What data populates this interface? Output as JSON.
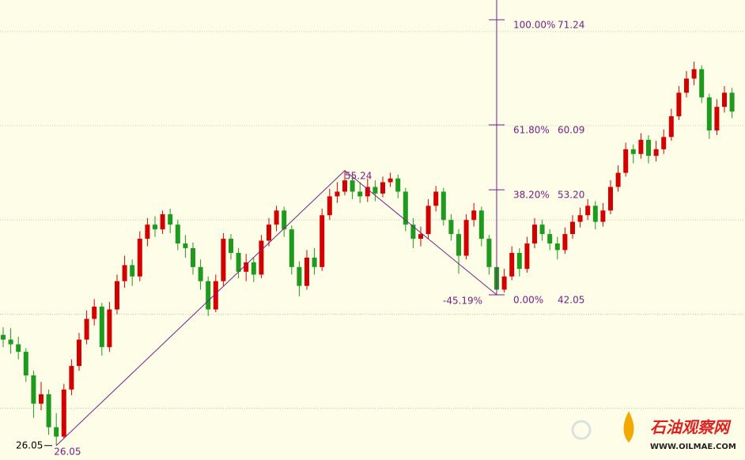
{
  "chart_data": {
    "type": "candlestick",
    "open": [
      37.8,
      37.3,
      36.8,
      36.0,
      33.5,
      30.5,
      31.5,
      28.0,
      27.0,
      32.0,
      34.5,
      37.3,
      39.5,
      40.8,
      36.5,
      40.5,
      43.5,
      45.2,
      44.0,
      48.0,
      49.5,
      49.0,
      50.6,
      49.5,
      47.5,
      47.0,
      45.0,
      43.5,
      40.5,
      43.5,
      48.0,
      46.5,
      44.5,
      45.5,
      44.2,
      47.8,
      49.5,
      51.0,
      49.0,
      45.0,
      43.0,
      46.0,
      45.0,
      50.5,
      52.5,
      53.0,
      54.2,
      53.0,
      52.5,
      53.5,
      52.8,
      54.0,
      54.4,
      53.0,
      49.5,
      48.0,
      48.5,
      51.5,
      53.0,
      50.0,
      48.5,
      46.2,
      50.0,
      51.0,
      48.0,
      45.0,
      42.6,
      44.0,
      46.5,
      44.8,
      47.5,
      49.5,
      48.5,
      47.5,
      46.8,
      48.5,
      49.8,
      50.5,
      51.5,
      49.8,
      51.0,
      53.5,
      55.0,
      57.5,
      57.0,
      58.5,
      56.8,
      57.5,
      58.8,
      61.0,
      63.5,
      65.0,
      66.0,
      63.0,
      59.5,
      62.0,
      63.5
    ],
    "high": [
      38.6,
      38.5,
      37.6,
      36.4,
      34.0,
      32.8,
      32.0,
      29.5,
      32.6,
      35.2,
      38.0,
      40.4,
      41.6,
      41.2,
      41.3,
      44.2,
      46.2,
      45.8,
      48.8,
      50.2,
      50.4,
      51.0,
      51.2,
      50.0,
      48.4,
      47.6,
      45.8,
      44.0,
      44.2,
      48.6,
      48.5,
      47.0,
      46.4,
      46.0,
      48.4,
      50.2,
      51.5,
      51.4,
      49.4,
      45.6,
      46.8,
      47.0,
      51.2,
      53.3,
      54.0,
      55.24,
      54.8,
      54.0,
      54.4,
      54.2,
      54.6,
      55.0,
      54.8,
      53.4,
      50.2,
      49.3,
      52.2,
      53.6,
      53.4,
      50.6,
      49.0,
      50.6,
      51.8,
      51.4,
      48.4,
      45.4,
      44.8,
      47.2,
      47.0,
      48.2,
      50.2,
      50.0,
      49.0,
      48.2,
      49.2,
      50.5,
      51.3,
      52.2,
      52.0,
      51.8,
      54.2,
      55.8,
      58.2,
      58.0,
      59.2,
      59.0,
      58.4,
      59.6,
      61.8,
      64.2,
      65.8,
      66.8,
      66.4,
      63.4,
      62.8,
      64.2,
      64.0
    ],
    "low": [
      36.5,
      35.8,
      35.2,
      32.8,
      29.0,
      29.8,
      27.2,
      26.05,
      26.8,
      31.4,
      34.0,
      36.8,
      38.8,
      35.6,
      36.0,
      40.0,
      42.8,
      43.0,
      43.5,
      47.2,
      48.2,
      48.5,
      48.6,
      46.8,
      46.0,
      44.2,
      42.6,
      39.8,
      40.2,
      43.0,
      45.8,
      43.8,
      43.5,
      43.4,
      43.8,
      47.2,
      48.8,
      48.2,
      44.2,
      41.9,
      42.6,
      44.2,
      44.6,
      50.0,
      51.8,
      52.6,
      52.2,
      51.8,
      51.9,
      52.0,
      52.4,
      53.5,
      52.3,
      48.8,
      47.0,
      47.2,
      48.0,
      50.9,
      49.4,
      47.8,
      44.3,
      45.8,
      49.3,
      47.2,
      44.2,
      42.05,
      42.3,
      43.6,
      44.0,
      44.4,
      47.0,
      47.8,
      46.8,
      45.8,
      46.4,
      48.0,
      49.2,
      50.0,
      49.0,
      49.3,
      50.6,
      53.0,
      54.6,
      56.0,
      56.5,
      56.0,
      56.2,
      57.0,
      58.4,
      60.6,
      63.0,
      64.3,
      62.4,
      58.6,
      59.0,
      61.4,
      60.8
    ],
    "close": [
      37.3,
      36.8,
      36.0,
      33.5,
      30.5,
      31.5,
      28.0,
      27.0,
      32.0,
      34.5,
      37.3,
      39.5,
      40.8,
      36.5,
      40.5,
      43.5,
      45.2,
      44.0,
      48.0,
      49.5,
      49.0,
      50.6,
      49.5,
      47.5,
      47.0,
      45.0,
      43.5,
      40.5,
      43.5,
      48.0,
      46.5,
      44.5,
      45.5,
      44.2,
      47.8,
      49.5,
      51.0,
      49.0,
      45.0,
      43.0,
      46.0,
      45.0,
      50.5,
      52.5,
      53.0,
      54.2,
      53.0,
      52.5,
      53.5,
      52.8,
      54.0,
      54.4,
      53.0,
      49.5,
      48.0,
      48.5,
      51.5,
      53.0,
      50.0,
      48.5,
      46.2,
      50.0,
      51.0,
      48.0,
      45.0,
      42.6,
      44.0,
      46.5,
      44.8,
      47.5,
      49.5,
      48.5,
      47.5,
      46.8,
      48.5,
      49.8,
      50.5,
      51.5,
      49.8,
      51.0,
      53.5,
      55.0,
      57.5,
      57.0,
      58.5,
      56.8,
      57.5,
      58.8,
      61.0,
      63.5,
      65.0,
      66.0,
      63.0,
      59.5,
      62.0,
      63.5,
      61.5
    ],
    "up_color": "#d40000",
    "down_color": "#1e9a1e",
    "ylim": [
      24.52,
      73.34
    ],
    "grid_lines": [
      30,
      40,
      50,
      60,
      70
    ],
    "grid": true,
    "swing_prices": [
      26.05,
      55.24,
      42.05
    ],
    "swing_index": [
      7,
      45,
      65
    ],
    "swing_change_label": "-45.19%",
    "fibonacci": {
      "color": "#7b1f86",
      "levels": [
        {
          "percent": "100.00%",
          "price": 71.24
        },
        {
          "percent": "61.80%",
          "price": 60.09
        },
        {
          "percent": "38.20%",
          "price": {
            "value": 53.2,
            "label": "53.20"
          }
        },
        {
          "percent": "0.00%",
          "price": 42.05
        }
      ]
    },
    "watermark": {
      "title": "石油观察网",
      "url": "WWW.OILMAE.COM"
    }
  }
}
